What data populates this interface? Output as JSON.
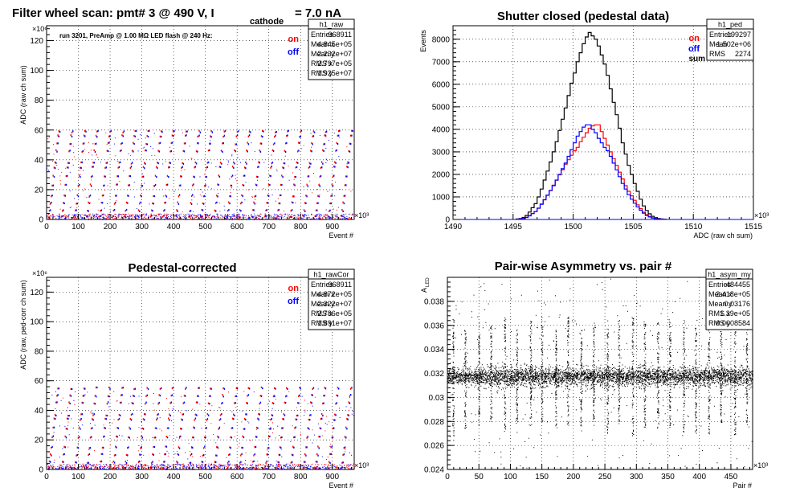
{
  "chart_data": [
    {
      "type": "scatter",
      "title": "Filter wheel scan: pmt#   3 @   490 V, I",
      "title_sub": "cathode",
      "title_tail": "= 7.0 nA",
      "annotation": "run 3201, PreAmp @ 1.00 MΩ   LED flash @  240 Hz:",
      "xlabel": "Event #",
      "ylabel": "ADC (raw ch sum)",
      "x_exponent": "×10³",
      "y_exponent": "×10⁶",
      "xlim": [
        0,
        968.9
      ],
      "ylim": [
        0,
        130
      ],
      "xticks": [
        0,
        100,
        200,
        300,
        400,
        500,
        600,
        700,
        800,
        900
      ],
      "yticks": [
        0,
        20,
        40,
        60,
        80,
        100,
        120
      ],
      "legend": [
        {
          "label": "on",
          "color": "#ff0000"
        },
        {
          "label": "off",
          "color": "#0000ff"
        }
      ],
      "stats": {
        "name": "h1_raw",
        "rows": [
          [
            "Entries",
            "968911"
          ],
          [
            "Mean x",
            "4.845e+05"
          ],
          [
            "Mean y",
            "2.232e+07"
          ],
          [
            "RMS x",
            "2.797e+05"
          ],
          [
            "RMS y",
            "1.925e+07"
          ]
        ]
      },
      "levels": [
        2,
        6,
        11,
        16,
        23,
        29,
        35,
        38,
        46,
        51,
        56,
        59
      ],
      "period": 40
    },
    {
      "type": "line",
      "title": "Shutter closed (pedestal data)",
      "xlabel": "ADC (raw ch sum)",
      "ylabel": "Events",
      "x_exponent": "×10³",
      "xlim": [
        1490,
        1515
      ],
      "ylim": [
        0,
        8600
      ],
      "xticks": [
        1490,
        1495,
        1500,
        1505,
        1510,
        1515
      ],
      "yticks": [
        0,
        1000,
        2000,
        3000,
        4000,
        5000,
        6000,
        7000,
        8000
      ],
      "legend": [
        {
          "label": "on",
          "color": "#ff0000"
        },
        {
          "label": "off",
          "color": "#0000ff"
        },
        {
          "label": "sum",
          "color": "#000000"
        }
      ],
      "stats": {
        "name": "h1_ped",
        "rows": [
          [
            "Entries",
            "199297"
          ],
          [
            "Mean",
            "1.502e+06"
          ],
          [
            "RMS",
            "2274"
          ]
        ]
      },
      "bin_width": 0.25,
      "bin_start": 1495.25,
      "series": [
        {
          "name": "sum",
          "color": "#000000",
          "values": [
            20,
            40,
            90,
            180,
            330,
            520,
            700,
            1000,
            1350,
            1750,
            2150,
            2550,
            3000,
            3450,
            3950,
            4450,
            4950,
            5500,
            6050,
            6500,
            7000,
            7400,
            7800,
            8100,
            8300,
            8150,
            8000,
            7700,
            7300,
            6900,
            6400,
            5800,
            5200,
            4650,
            4050,
            3400,
            2900,
            2400,
            2000,
            1600,
            1250,
            900,
            600,
            400,
            250,
            140,
            80,
            40,
            20,
            8
          ]
        },
        {
          "name": "on",
          "color": "#ff0000",
          "values": [
            10,
            20,
            45,
            95,
            170,
            260,
            350,
            500,
            690,
            870,
            1070,
            1280,
            1520,
            1740,
            1980,
            2200,
            2450,
            2650,
            2850,
            3050,
            3200,
            3450,
            3650,
            3850,
            4050,
            4150,
            4200,
            4200,
            3900,
            3600,
            3300,
            3000,
            2700,
            2400,
            2100,
            1800,
            1500,
            1250,
            1050,
            850,
            650,
            480,
            320,
            210,
            130,
            75,
            40,
            20,
            10,
            4
          ]
        },
        {
          "name": "off",
          "color": "#0000ff",
          "values": [
            10,
            20,
            45,
            90,
            160,
            260,
            350,
            500,
            670,
            880,
            1080,
            1290,
            1500,
            1750,
            2000,
            2250,
            2500,
            2800,
            3100,
            3400,
            3700,
            3900,
            4100,
            4200,
            4200,
            4000,
            3850,
            3600,
            3400,
            3200,
            3050,
            2800,
            2500,
            2200,
            1900,
            1600,
            1350,
            1100,
            900,
            720,
            560,
            410,
            280,
            180,
            110,
            60,
            35,
            18,
            8,
            3
          ]
        }
      ]
    },
    {
      "type": "scatter",
      "title": "Pedestal-corrected",
      "xlabel": "Event #",
      "ylabel": "ADC (raw, ped-corr ch sum)",
      "x_exponent": "×10³",
      "y_exponent": "×10⁶",
      "xlim": [
        0,
        968.9
      ],
      "ylim": [
        0,
        130
      ],
      "xticks": [
        0,
        100,
        200,
        300,
        400,
        500,
        600,
        700,
        800,
        900
      ],
      "yticks": [
        0,
        20,
        40,
        60,
        80,
        100,
        120
      ],
      "legend": [
        {
          "label": "on",
          "color": "#ff0000"
        },
        {
          "label": "off",
          "color": "#0000ff"
        }
      ],
      "stats": {
        "name": "h1_rawCor",
        "rows": [
          [
            "Entries",
            "968911"
          ],
          [
            "Mean x",
            "4.872e+05"
          ],
          [
            "Mean y",
            "2.322e+07"
          ],
          [
            "RMS x",
            "2.786e+05"
          ],
          [
            "RMS y",
            "1.891e+07"
          ]
        ]
      },
      "levels": [
        1,
        5,
        10,
        15,
        22,
        28,
        34,
        37,
        45,
        50,
        55
      ],
      "period": 40
    },
    {
      "type": "scatter",
      "title": "Pair-wise Asymmetry vs. pair #",
      "xlabel": "Pair #",
      "ylabel": "A",
      "ylabel_sub": "LED",
      "x_exponent": "×10³",
      "xlim": [
        0,
        484.5
      ],
      "ylim": [
        0.024,
        0.04
      ],
      "xticks": [
        0,
        50,
        100,
        150,
        200,
        250,
        300,
        350,
        400,
        450
      ],
      "yticks": [
        0.024,
        0.026,
        0.028,
        0.03,
        0.032,
        0.034,
        0.036,
        0.038
      ],
      "ytick_labels": [
        "0.024",
        "0.026",
        "0.028",
        "0.03",
        "0.032",
        "0.034",
        "0.036",
        "0.038"
      ],
      "stats": {
        "name": "h1_asym_my",
        "rows": [
          [
            "Entries",
            "484455"
          ],
          [
            "Mean x",
            "2.418e+05"
          ],
          [
            "Mean y",
            "0.03176"
          ],
          [
            "RMS x",
            "1.39e+05"
          ],
          [
            "RMS y",
            "0.0008584"
          ]
        ]
      },
      "band_center": 0.03176,
      "band_rms": 0.0008584,
      "spike_positions": [
        9,
        28,
        50,
        69,
        91,
        110,
        132,
        150,
        172,
        191,
        212,
        232,
        254,
        272,
        294,
        313,
        334,
        353,
        375,
        394,
        415,
        434,
        456,
        475
      ],
      "spike_range": [
        0.0268,
        0.0368
      ]
    }
  ]
}
